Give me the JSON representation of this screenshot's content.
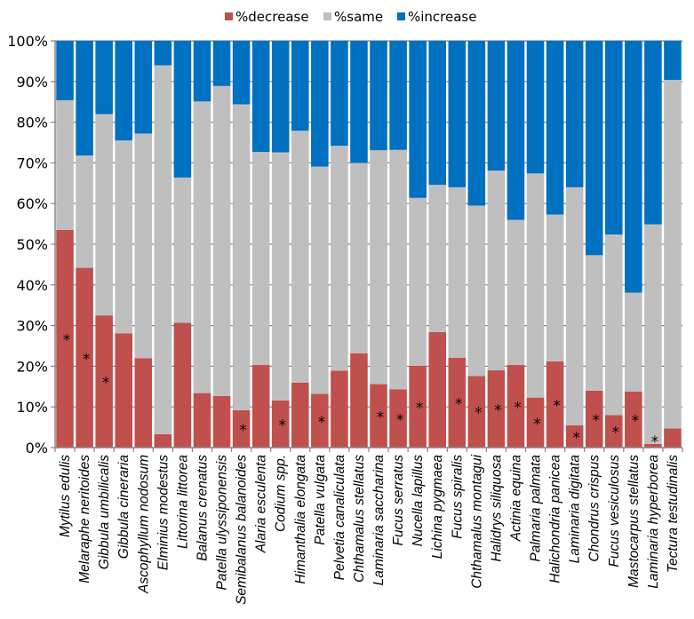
{
  "chart_data": {
    "type": "bar",
    "stacked": true,
    "normalized": true,
    "title": "",
    "xlabel": "",
    "ylabel": "",
    "ylim": [
      0,
      100
    ],
    "ytick_labels": [
      "0%",
      "10%",
      "20%",
      "30%",
      "40%",
      "50%",
      "60%",
      "70%",
      "80%",
      "90%",
      "100%"
    ],
    "ytick_values": [
      0,
      10,
      20,
      30,
      40,
      50,
      60,
      70,
      80,
      90,
      100
    ],
    "grid": true,
    "legend_position": "top-center",
    "categories": [
      "Mytilus edulis",
      "Melaraphe neritoides",
      "Gibbula umbilicalis",
      "Gibbula cineraria",
      "Ascophyllum nodosum",
      "Elminius modestus",
      "Littorina littorea",
      "Balanus crenatus",
      "Patella ulyssiponensis",
      "Semibalanus balanoides",
      "Alaria esculenta",
      "Codium spp.",
      "Himanthalia elongata",
      "Patella vulgata",
      "Pelvetia canaliculata",
      "Chthamalus stellatus",
      "Laminaria saccharina",
      "Fucus serratus",
      "Nucella lapillus",
      "Lichina pygmaea",
      "Fucus spiralis",
      "Chthamalus montagui",
      "Halidrys siliquosa",
      "Actinia equina",
      "Palmaria palmata",
      "Halichondria panicea",
      "Laminaria digitata",
      "Chondrus crispus",
      "Fucus vesiculosus",
      "Mastocarpus stellatus",
      "Laminaria hyperborea",
      "Tectura testudinalis"
    ],
    "series": [
      {
        "name": "%decrease",
        "color": "#c0504d",
        "values": [
          53.5,
          44.2,
          32.5,
          28.1,
          22.0,
          3.3,
          30.7,
          13.4,
          12.7,
          9.2,
          20.3,
          11.6,
          16.0,
          13.2,
          18.9,
          23.2,
          15.6,
          14.3,
          20.1,
          28.4,
          22.1,
          17.6,
          19.0,
          20.3,
          12.3,
          21.2,
          5.5,
          14.0,
          8.0,
          13.8,
          0.9,
          4.7
        ]
      },
      {
        "name": "%same",
        "color": "#bfbfbf",
        "values": [
          31.9,
          27.6,
          49.5,
          47.4,
          55.2,
          90.7,
          35.7,
          71.7,
          76.2,
          75.2,
          52.4,
          61.0,
          61.9,
          55.9,
          55.3,
          46.8,
          57.5,
          58.9,
          41.3,
          36.2,
          41.9,
          41.9,
          49.1,
          35.7,
          55.1,
          36.1,
          58.5,
          33.3,
          44.4,
          24.3,
          54.0,
          85.7
        ]
      },
      {
        "name": "%increase",
        "color": "#0070c0",
        "values": [
          14.6,
          28.2,
          18.0,
          24.5,
          22.8,
          6.0,
          33.6,
          14.9,
          11.1,
          15.6,
          27.3,
          27.4,
          22.1,
          30.9,
          25.8,
          30.0,
          26.9,
          26.8,
          38.6,
          35.4,
          36.0,
          40.5,
          31.9,
          44.0,
          32.6,
          42.7,
          36.0,
          52.7,
          47.6,
          61.9,
          45.1,
          9.6
        ]
      }
    ],
    "significance_marker": "*",
    "significant": [
      true,
      true,
      true,
      false,
      false,
      false,
      false,
      false,
      false,
      true,
      false,
      true,
      false,
      true,
      false,
      false,
      true,
      true,
      true,
      false,
      true,
      true,
      true,
      true,
      true,
      true,
      true,
      true,
      true,
      true,
      true,
      false
    ]
  }
}
